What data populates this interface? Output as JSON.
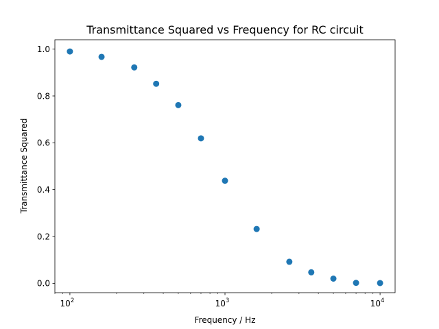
{
  "chart_data": {
    "type": "scatter",
    "title": "Transmittance Squared vs Frequency for RC circuit",
    "xlabel": "Frequency / Hz",
    "ylabel": "Transmittance Squared",
    "xscale": "log",
    "xlim": [
      80,
      12500
    ],
    "ylim": [
      -0.04,
      1.04
    ],
    "grid": false,
    "color": "#1f77b4",
    "x_ticks": [
      {
        "value": 100,
        "base": "10",
        "exp": "2"
      },
      {
        "value": 1000,
        "base": "10",
        "exp": "3"
      },
      {
        "value": 10000,
        "base": "10",
        "exp": "4"
      }
    ],
    "y_ticks": [
      {
        "value": 0.0,
        "label": "0.0"
      },
      {
        "value": 0.2,
        "label": "0.2"
      },
      {
        "value": 0.4,
        "label": "0.4"
      },
      {
        "value": 0.6,
        "label": "0.6"
      },
      {
        "value": 0.8,
        "label": "0.8"
      },
      {
        "value": 1.0,
        "label": "1.0"
      }
    ],
    "points": [
      {
        "x": 100,
        "y": 0.99
      },
      {
        "x": 160,
        "y": 0.967
      },
      {
        "x": 260,
        "y": 0.922
      },
      {
        "x": 360,
        "y": 0.852
      },
      {
        "x": 500,
        "y": 0.761
      },
      {
        "x": 700,
        "y": 0.619
      },
      {
        "x": 1000,
        "y": 0.438
      },
      {
        "x": 1600,
        "y": 0.232
      },
      {
        "x": 2600,
        "y": 0.092
      },
      {
        "x": 3600,
        "y": 0.047
      },
      {
        "x": 5000,
        "y": 0.02
      },
      {
        "x": 7000,
        "y": 0.002
      },
      {
        "x": 10000,
        "y": 0.001
      }
    ]
  }
}
